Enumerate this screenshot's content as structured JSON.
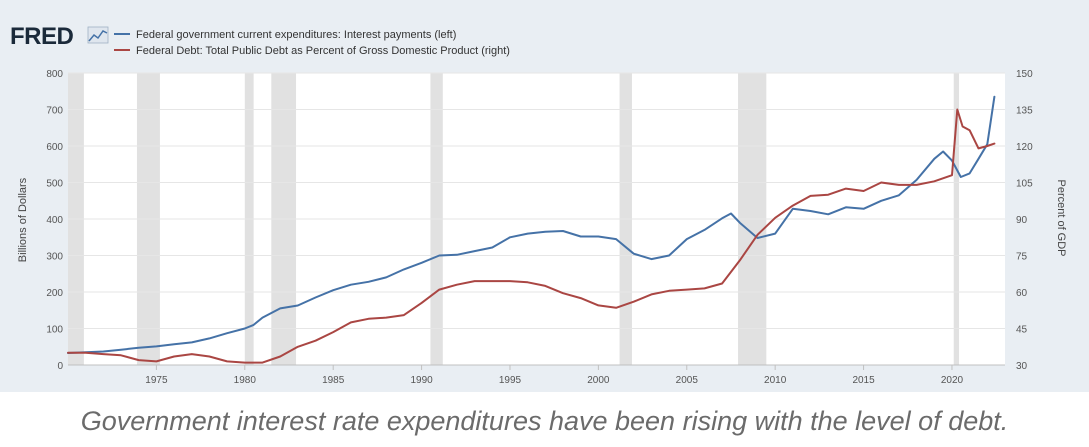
{
  "logo": {
    "text": "FRED",
    "icon": "line-chart-icon"
  },
  "legend": [
    {
      "label": "Federal government current expenditures: Interest payments (left)",
      "color": "#4572a7"
    },
    {
      "label": "Federal Debt: Total Public Debt as Percent of Gross Domestic Product (right)",
      "color": "#aa4643"
    }
  ],
  "caption": "Government interest rate expenditures have been rising with the level of debt.",
  "chart_data": {
    "type": "line",
    "xlabel": "",
    "ylabel_left": "Billions of Dollars",
    "ylabel_right": "Percent of GDP",
    "xlim": [
      1970.0,
      2023.0
    ],
    "ylim_left": [
      0,
      800
    ],
    "ylim_right": [
      30,
      150
    ],
    "x_ticks": [
      1975,
      1980,
      1985,
      1990,
      1995,
      2000,
      2005,
      2010,
      2015,
      2020
    ],
    "y_ticks_left": [
      0,
      100,
      200,
      300,
      400,
      500,
      600,
      700,
      800
    ],
    "y_ticks_right": [
      30,
      45,
      60,
      75,
      90,
      105,
      120,
      135,
      150
    ],
    "grid": true,
    "legend_position": "top-left",
    "recessions": [
      [
        1970.0,
        1970.9
      ],
      [
        1973.9,
        1975.2
      ],
      [
        1980.0,
        1980.5
      ],
      [
        1981.5,
        1982.9
      ],
      [
        1990.5,
        1991.2
      ],
      [
        2001.2,
        2001.9
      ],
      [
        2007.9,
        2009.5
      ],
      [
        2020.1,
        2020.4
      ]
    ],
    "series": [
      {
        "name": "Federal government current expenditures: Interest payments (left)",
        "axis": "left",
        "color": "#4572a7",
        "x": [
          1970,
          1971,
          1972,
          1973,
          1974,
          1975,
          1976,
          1977,
          1978,
          1979,
          1980,
          1980.5,
          1981,
          1982,
          1983,
          1984,
          1985,
          1986,
          1987,
          1988,
          1989,
          1990,
          1991,
          1992,
          1993,
          1994,
          1995,
          1996,
          1997,
          1998,
          1999,
          2000,
          2001,
          2002,
          2003,
          2004,
          2005,
          2006,
          2007,
          2007.5,
          2008,
          2009,
          2010,
          2011,
          2012,
          2013,
          2014,
          2015,
          2016,
          2017,
          2018,
          2019,
          2019.5,
          2020,
          2020.5,
          2021,
          2021.5,
          2022,
          2022.4
        ],
        "values": [
          33,
          35,
          37,
          42,
          47,
          51,
          57,
          62,
          73,
          87,
          100,
          110,
          130,
          155,
          163,
          185,
          205,
          220,
          228,
          240,
          262,
          280,
          300,
          302,
          312,
          322,
          350,
          360,
          365,
          367,
          352,
          352,
          345,
          305,
          290,
          300,
          345,
          370,
          402,
          415,
          390,
          348,
          360,
          428,
          422,
          413,
          432,
          428,
          450,
          465,
          507,
          565,
          585,
          560,
          515,
          525,
          565,
          605,
          735
        ]
      },
      {
        "name": "Federal Debt: Total Public Debt as Percent of Gross Domestic Product (right)",
        "axis": "right",
        "color": "#aa4643",
        "x": [
          1970,
          1971,
          1972,
          1973,
          1974,
          1975,
          1976,
          1977,
          1978,
          1979,
          1980,
          1981,
          1982,
          1983,
          1984,
          1985,
          1986,
          1987,
          1988,
          1989,
          1990,
          1991,
          1992,
          1993,
          1994,
          1995,
          1996,
          1997,
          1998,
          1999,
          2000,
          2001,
          2002,
          2003,
          2004,
          2005,
          2006,
          2007,
          2008,
          2009,
          2010,
          2011,
          2012,
          2013,
          2014,
          2015,
          2016,
          2017,
          2018,
          2019,
          2020,
          2020.3,
          2020.6,
          2021,
          2021.5,
          2022,
          2022.4
        ],
        "values": [
          35,
          35,
          34.5,
          34,
          32,
          31.5,
          33.5,
          34.5,
          33.5,
          31.5,
          31,
          31,
          33.5,
          37.5,
          40,
          43.5,
          47.5,
          49,
          49.5,
          50.5,
          55.5,
          61,
          63,
          64.5,
          64.5,
          64.5,
          64,
          62.5,
          59.5,
          57.5,
          54.5,
          53.5,
          56,
          59,
          60.5,
          61,
          61.5,
          63.5,
          73,
          83.5,
          90.5,
          95.5,
          99.5,
          100,
          102.5,
          101.5,
          105,
          104,
          104,
          105.5,
          108,
          135,
          128,
          126.5,
          119,
          120,
          121
        ]
      }
    ]
  }
}
